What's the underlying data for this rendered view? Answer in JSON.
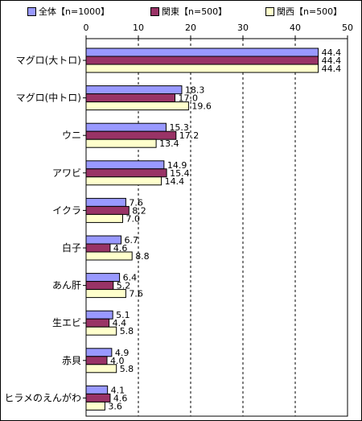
{
  "chart_data": {
    "type": "bar",
    "orientation": "horizontal",
    "xlim": [
      0,
      50
    ],
    "ticks": [
      0,
      10,
      20,
      30,
      40,
      50
    ],
    "grid": true,
    "legend_position": "top",
    "categories": [
      "マグロ(大トロ)",
      "マグロ(中トロ)",
      "ウニ",
      "アワビ",
      "イクラ",
      "白子",
      "あん肝",
      "生エビ",
      "赤貝",
      "ヒラメのえんがわ"
    ],
    "series": [
      {
        "name": "全体【n=1000】",
        "color": "#9999ff",
        "values": [
          44.4,
          18.3,
          15.3,
          14.9,
          7.6,
          6.7,
          6.4,
          5.1,
          4.9,
          4.1
        ]
      },
      {
        "name": "関東【n=500】",
        "color": "#993366",
        "values": [
          44.4,
          17.0,
          17.2,
          15.4,
          8.2,
          4.6,
          5.2,
          4.4,
          4.0,
          4.6
        ]
      },
      {
        "name": "関西【n=500】",
        "color": "#ffffcc",
        "values": [
          44.4,
          19.6,
          13.4,
          14.4,
          7.0,
          8.8,
          7.6,
          5.8,
          5.8,
          3.6
        ]
      }
    ]
  }
}
